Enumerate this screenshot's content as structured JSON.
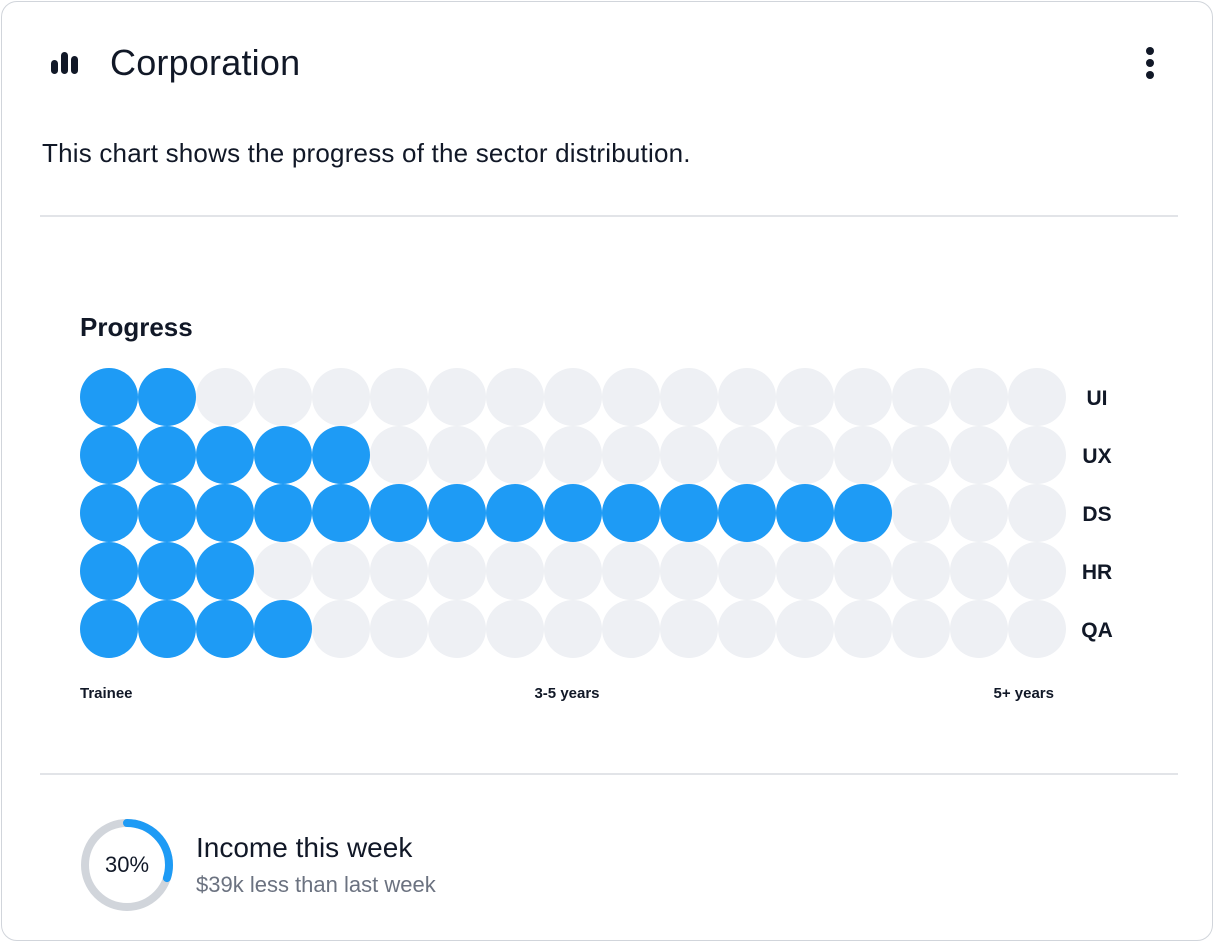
{
  "header": {
    "title": "Corporation",
    "icon": "bar-chart-icon",
    "menu_icon": "more-vertical-icon"
  },
  "description": "This chart shows the progress of the sector distribution.",
  "colors": {
    "filled": "#1e9bf5",
    "empty": "#eef0f4",
    "ring_track": "#d1d5db",
    "ring_fill": "#1e9bf5"
  },
  "chart_data": {
    "type": "waffle",
    "title": "Progress",
    "total_per_row": 17,
    "categories": [
      "UI",
      "UX",
      "DS",
      "HR",
      "QA"
    ],
    "values": [
      2,
      5,
      14,
      3,
      4
    ],
    "x_tick_labels": [
      "Trainee",
      "3-5 years",
      "5+ years"
    ]
  },
  "footer": {
    "percent": 30,
    "percent_label": "30%",
    "title": "Income this week",
    "subtitle": "$39k less than last week"
  }
}
